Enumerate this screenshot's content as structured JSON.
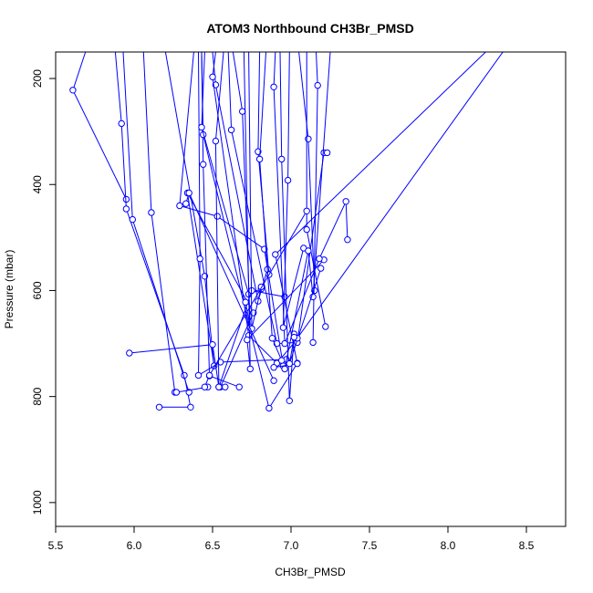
{
  "chart_data": {
    "type": "line",
    "title": "ATOM3 Northbound CH3Br_PMSD",
    "xlabel": "CH3Br_PMSD",
    "ylabel": "Pressure (mbar)",
    "xlim": [
      5.5,
      8.75
    ],
    "ylim": [
      1045,
      150
    ],
    "y_reversed": true,
    "grid": false,
    "legend": "none",
    "line_color": "#0000ff",
    "marker": "open-circle",
    "x_ticks": [
      "5.5",
      "6.0",
      "6.5",
      "7.0",
      "7.5",
      "8.0",
      "8.5"
    ],
    "x_tick_values": [
      5.5,
      6.0,
      6.5,
      7.0,
      7.5,
      8.0,
      8.5
    ],
    "y_ticks": [
      "200",
      "400",
      "600",
      "800",
      "1000"
    ],
    "y_tick_values": [
      200,
      400,
      600,
      800,
      1000
    ],
    "series": [
      {
        "x": [
          5.69,
          5.61,
          5.95
        ],
        "y": [
          150,
          222,
          428
        ],
        "points": [
          false,
          true,
          true
        ]
      },
      {
        "x": [
          5.88,
          5.92,
          5.95,
          6.32,
          6.36,
          6.16
        ],
        "y": [
          150,
          285,
          446,
          760,
          820,
          820
        ],
        "points": [
          false,
          true,
          true,
          true,
          true,
          true
        ]
      },
      {
        "x": [
          5.93,
          5.99,
          6.35
        ],
        "y": [
          150,
          466,
          792
        ],
        "points": [
          false,
          true,
          true
        ]
      },
      {
        "x": [
          6.06,
          6.11,
          6.26
        ],
        "y": [
          150,
          453,
          792
        ],
        "points": [
          false,
          true,
          true
        ]
      },
      {
        "x": [
          6.2,
          6.45,
          6.51,
          6.34,
          6.76,
          6.55
        ],
        "y": [
          150,
          573,
          742,
          416,
          642,
          782
        ],
        "points": [
          false,
          true,
          true,
          true,
          true,
          true
        ]
      },
      {
        "x": [
          6.38,
          6.29,
          6.53,
          6.83,
          6.95
        ],
        "y": [
          150,
          440,
          460,
          522,
          742
        ],
        "points": [
          false,
          true,
          true,
          true,
          true
        ]
      },
      {
        "x": [
          6.41,
          6.42,
          6.41,
          6.55,
          6.97
        ],
        "y": [
          150,
          540,
          760,
          735,
          730
        ],
        "points": [
          false,
          true,
          true,
          true,
          true
        ]
      },
      {
        "x": [
          6.43,
          6.44,
          6.48,
          6.67
        ],
        "y": [
          150,
          362,
          761,
          782
        ],
        "points": [
          false,
          true,
          true,
          true
        ]
      },
      {
        "x": [
          6.43,
          6.44,
          6.86,
          7.04
        ],
        "y": [
          150,
          306,
          822,
          737
        ],
        "points": [
          false,
          true,
          true,
          true
        ]
      },
      {
        "x": [
          6.45,
          6.43,
          6.73,
          6.81
        ],
        "y": [
          150,
          292,
          607,
          597
        ],
        "points": [
          false,
          true,
          true,
          true
        ]
      },
      {
        "x": [
          6.5,
          6.52,
          6.79,
          6.85
        ],
        "y": [
          150,
          212,
          620,
          560
        ],
        "points": [
          false,
          true,
          true,
          true
        ]
      },
      {
        "x": [
          6.52,
          6.5,
          6.73,
          6.91,
          7.03
        ],
        "y": [
          150,
          197,
          685,
          737,
          695
        ],
        "points": [
          false,
          true,
          true,
          true,
          true
        ]
      },
      {
        "x": [
          6.57,
          6.52,
          6.54,
          6.75,
          6.96
        ],
        "y": [
          150,
          318,
          782,
          600,
          612
        ],
        "points": [
          false,
          true,
          true,
          true,
          true
        ]
      },
      {
        "x": [
          6.6,
          6.62,
          6.91,
          7.04,
          7.21,
          7.23
        ],
        "y": [
          150,
          297,
          700,
          698,
          340,
          340
        ],
        "points": [
          false,
          true,
          true,
          true,
          true,
          true
        ]
      },
      {
        "x": [
          6.63,
          6.69,
          6.74,
          6.71
        ],
        "y": [
          150,
          262,
          670,
          622
        ],
        "points": [
          false,
          true,
          true,
          true
        ]
      },
      {
        "x": [
          6.7,
          6.74,
          6.72,
          7.21
        ],
        "y": [
          150,
          748,
          693,
          542
        ],
        "points": [
          false,
          true,
          true,
          true
        ]
      },
      {
        "x": [
          6.73,
          6.75,
          6.81
        ],
        "y": [
          150,
          672,
          593
        ],
        "points": [
          false,
          true,
          true
        ]
      },
      {
        "x": [
          6.8,
          6.79,
          6.86
        ],
        "y": [
          150,
          338,
          570
        ],
        "points": [
          false,
          true,
          true
        ]
      },
      {
        "x": [
          6.84,
          6.8,
          6.88,
          6.94
        ],
        "y": [
          150,
          352,
          690,
          732
        ],
        "points": [
          false,
          true,
          true,
          true
        ]
      },
      {
        "x": [
          6.9,
          6.89,
          6.96,
          7.18,
          7.35,
          7.36
        ],
        "y": [
          150,
          216,
          700,
          540,
          432,
          504
        ],
        "points": [
          false,
          true,
          true,
          true,
          true,
          true
        ]
      },
      {
        "x": [
          6.93,
          6.94,
          6.99,
          7.02
        ],
        "y": [
          150,
          352,
          808,
          682
        ],
        "points": [
          false,
          true,
          true,
          true
        ]
      },
      {
        "x": [
          6.99,
          6.98,
          6.95,
          7.08
        ],
        "y": [
          150,
          392,
          670,
          520
        ],
        "points": [
          false,
          true,
          true,
          true
        ]
      },
      {
        "x": [
          7.05,
          7.11,
          7.15
        ],
        "y": [
          150,
          314,
          600
        ],
        "points": [
          false,
          true,
          true
        ]
      },
      {
        "x": [
          7.1,
          7.1,
          7.22
        ],
        "y": [
          150,
          485,
          668
        ],
        "points": [
          false,
          true,
          true
        ]
      },
      {
        "x": [
          7.16,
          7.17,
          7.14
        ],
        "y": [
          150,
          213,
          698
        ],
        "points": [
          false,
          true,
          true
        ]
      },
      {
        "x": [
          7.25,
          7.14,
          7.11,
          6.96
        ],
        "y": [
          150,
          612,
          525,
          748
        ],
        "points": [
          false,
          true,
          true,
          true
        ]
      },
      {
        "x": [
          8.24,
          6.9,
          7.04,
          6.89
        ],
        "y": [
          150,
          532,
          738,
          745
        ],
        "points": [
          false,
          true,
          true,
          true
        ]
      },
      {
        "x": [
          8.35,
          7.04,
          7.02,
          6.99,
          7.19
        ],
        "y": [
          150,
          690,
          688,
          738,
          558
        ],
        "points": [
          false,
          true,
          true,
          true,
          true
        ]
      },
      {
        "x": [
          5.97,
          6.5,
          6.54,
          6.58
        ],
        "y": [
          718,
          702,
          782,
          782
        ],
        "points": [
          true,
          true,
          true,
          true
        ]
      },
      {
        "x": [
          6.27,
          6.47
        ],
        "y": [
          792,
          782
        ],
        "points": [
          true,
          true
        ]
      },
      {
        "x": [
          6.33,
          6.35,
          6.89
        ],
        "y": [
          436,
          416,
          770
        ],
        "points": [
          true,
          true,
          true
        ]
      },
      {
        "x": [
          7.1,
          6.48,
          6.45
        ],
        "y": [
          450,
          760,
          782
        ],
        "points": [
          true,
          true,
          true
        ]
      }
    ]
  }
}
